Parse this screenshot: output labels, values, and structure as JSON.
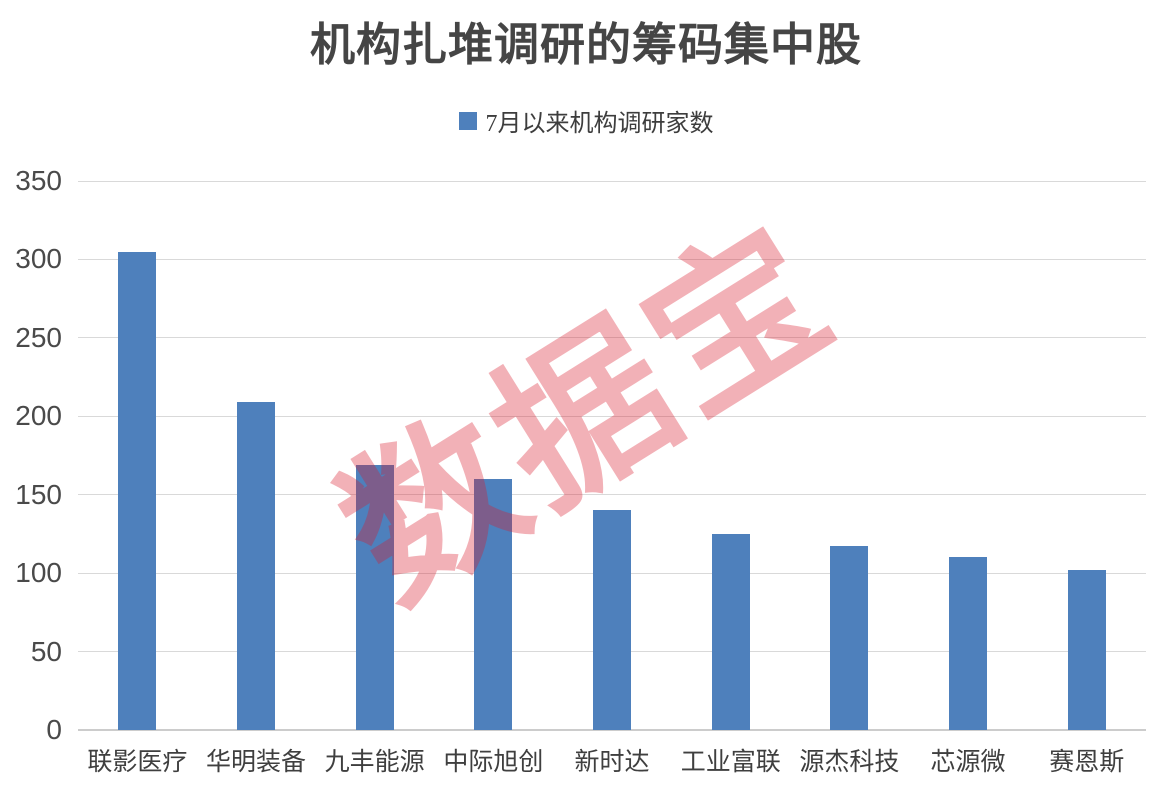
{
  "title": "机构扎堆调研的筹码集中股",
  "legend": {
    "label": "7月以来机构调研家数"
  },
  "watermark": "数据宝",
  "colors": {
    "bar": "#4E80BC",
    "gridline": "#d9d9d9",
    "axis_line": "#cccccc",
    "title_text": "#454545",
    "tick_text": "#4a4a4a",
    "watermark": "rgba(218,25,45,0.34)"
  },
  "chart_data": {
    "type": "bar",
    "title": "机构扎堆调研的筹码集中股",
    "legend_entries": [
      "7月以来机构调研家数"
    ],
    "legend_position": "top",
    "categories": [
      "联影医疗",
      "华明装备",
      "九丰能源",
      "中际旭创",
      "新时达",
      "工业富联",
      "源杰科技",
      "芯源微",
      "赛恩斯"
    ],
    "values": [
      305,
      209,
      169,
      160,
      140,
      125,
      117,
      110,
      102
    ],
    "xlabel": "",
    "ylabel": "",
    "ylim": [
      0,
      350
    ],
    "yticks": [
      0,
      50,
      100,
      150,
      200,
      250,
      300,
      350
    ],
    "grid": true
  }
}
